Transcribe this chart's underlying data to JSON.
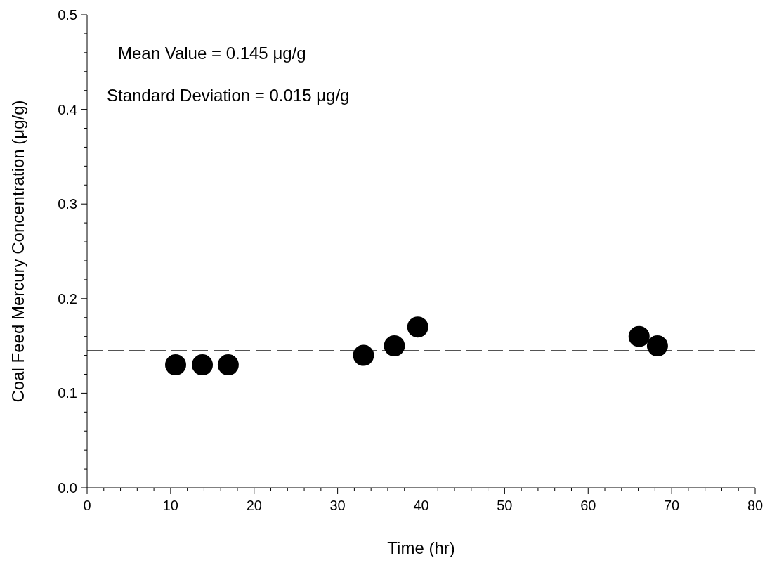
{
  "chart_data": {
    "type": "scatter",
    "xlabel": "Time (hr)",
    "ylabel": "Coal Feed Mercury Concentration (μg/g)",
    "x": [
      10.6,
      13.8,
      16.9,
      33.1,
      36.8,
      39.6,
      66.1,
      68.3
    ],
    "series": [
      {
        "color": "#000000",
        "values": [
          0.13,
          0.13,
          0.13,
          0.14,
          0.15,
          0.17,
          0.16,
          0.15
        ]
      }
    ],
    "marker": "circle",
    "grid": false,
    "xlim": [
      0,
      80
    ],
    "ylim": [
      0,
      0.5
    ],
    "xticks": [
      0,
      {
        "value": 2,
        "label": null
      },
      {
        "value": 4,
        "label": null
      },
      {
        "value": 6,
        "label": null
      },
      {
        "value": 8,
        "label": null
      },
      10,
      {
        "value": 12,
        "label": null
      },
      {
        "value": 14,
        "label": null
      },
      {
        "value": 16,
        "label": null
      },
      {
        "value": 18,
        "label": null
      },
      20,
      {
        "value": 22,
        "label": null
      },
      {
        "value": 24,
        "label": null
      },
      {
        "value": 26,
        "label": null
      },
      {
        "value": 28,
        "label": null
      },
      30,
      {
        "value": 32,
        "label": null
      },
      {
        "value": 34,
        "label": null
      },
      {
        "value": 36,
        "label": null
      },
      {
        "value": 38,
        "label": null
      },
      40,
      {
        "value": 42,
        "label": null
      },
      {
        "value": 44,
        "label": null
      },
      {
        "value": 46,
        "label": null
      },
      {
        "value": 48,
        "label": null
      },
      50,
      {
        "value": 52,
        "label": null
      },
      {
        "value": 54,
        "label": null
      },
      {
        "value": 56,
        "label": null
      },
      {
        "value": 58,
        "label": null
      },
      60,
      {
        "value": 62,
        "label": null
      },
      {
        "value": 64,
        "label": null
      },
      {
        "value": 66,
        "label": null
      },
      {
        "value": 68,
        "label": null
      },
      70,
      {
        "value": 72,
        "label": null
      },
      {
        "value": 74,
        "label": null
      },
      {
        "value": 76,
        "label": null
      },
      {
        "value": 78,
        "label": null
      },
      80
    ],
    "yticks": [
      {
        "value": 0,
        "label": "0.0"
      },
      {
        "value": 0.02,
        "label": null
      },
      {
        "value": 0.04,
        "label": null
      },
      {
        "value": 0.06,
        "label": null
      },
      {
        "value": 0.08,
        "label": null
      },
      {
        "value": 0.1,
        "label": "0.1"
      },
      {
        "value": 0.12,
        "label": null
      },
      {
        "value": 0.14,
        "label": null
      },
      {
        "value": 0.16,
        "label": null
      },
      {
        "value": 0.18,
        "label": null
      },
      {
        "value": 0.2,
        "label": "0.2"
      },
      {
        "value": 0.22,
        "label": null
      },
      {
        "value": 0.24,
        "label": null
      },
      {
        "value": 0.26,
        "label": null
      },
      {
        "value": 0.28,
        "label": null
      },
      {
        "value": 0.3,
        "label": "0.3"
      },
      {
        "value": 0.32,
        "label": null
      },
      {
        "value": 0.34,
        "label": null
      },
      {
        "value": 0.36,
        "label": null
      },
      {
        "value": 0.38,
        "label": null
      },
      {
        "value": 0.4,
        "label": "0.4"
      },
      {
        "value": 0.42,
        "label": null
      },
      {
        "value": 0.44,
        "label": null
      },
      {
        "value": 0.46,
        "label": null
      },
      {
        "value": 0.48,
        "label": null
      },
      {
        "value": 0.5,
        "label": "0.5"
      }
    ],
    "ref_lines": [
      {
        "axis": "y",
        "value": 0.145,
        "color": "#000000",
        "line_style": "dashed"
      }
    ],
    "annotations": [
      "Mean Value = 0.145 μg/g",
      "Standard Deviation = 0.015 μg/g"
    ]
  }
}
